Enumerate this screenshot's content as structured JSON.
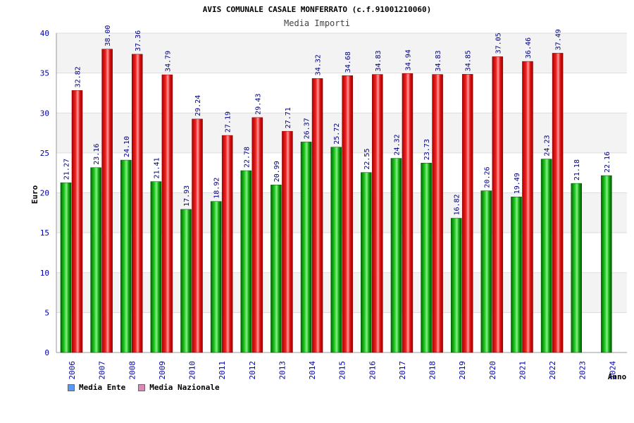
{
  "chart_data": {
    "type": "bar",
    "title": "AVIS COMUNALE CASALE MONFERRATO (c.f.91001210060)",
    "subtitle": "Media Importi",
    "xlabel": "Anno",
    "ylabel": "Euro",
    "ylim": [
      0,
      40
    ],
    "yticks": [
      0,
      5,
      10,
      15,
      20,
      25,
      30,
      35,
      40
    ],
    "categories": [
      "2006",
      "2007",
      "2008",
      "2009",
      "2010",
      "2011",
      "2012",
      "2013",
      "2014",
      "2015",
      "2016",
      "2017",
      "2018",
      "2019",
      "2020",
      "2021",
      "2022",
      "2023",
      "2024"
    ],
    "series": [
      {
        "name": "Media Ente",
        "color": "#00aa00",
        "legend_color": "#5599ff",
        "values": [
          21.27,
          23.16,
          24.1,
          21.41,
          17.93,
          18.92,
          22.78,
          20.99,
          26.37,
          25.72,
          22.55,
          24.32,
          23.73,
          16.82,
          20.26,
          19.49,
          24.23,
          21.18,
          22.16
        ],
        "labels": [
          "21.27",
          "23.16",
          "24.10",
          "21.41",
          "17.93",
          "18.92",
          "22.78",
          "20.99",
          "26.37",
          "25.72",
          "22.55",
          "24.32",
          "23.73",
          "16.82",
          "20.26",
          "19.49",
          "24.23",
          "21.18",
          "22.16"
        ]
      },
      {
        "name": "Media Nazionale",
        "color": "#ee1111",
        "legend_color": "#dd88bb",
        "values": [
          32.82,
          38.0,
          37.36,
          34.79,
          29.24,
          27.19,
          29.43,
          27.71,
          34.32,
          34.68,
          34.83,
          34.94,
          34.83,
          34.85,
          37.05,
          36.46,
          37.49,
          null,
          null
        ],
        "labels": [
          "32.82",
          "38.00",
          "37.36",
          "34.79",
          "29.24",
          "27.19",
          "29.43",
          "27.71",
          "34.32",
          "34.68",
          "34.83",
          "34.94",
          "34.83",
          "34.85",
          "37.05",
          "36.46",
          "37.49",
          "",
          ""
        ]
      }
    ],
    "grid": true,
    "legend_position": "bottom-left"
  }
}
